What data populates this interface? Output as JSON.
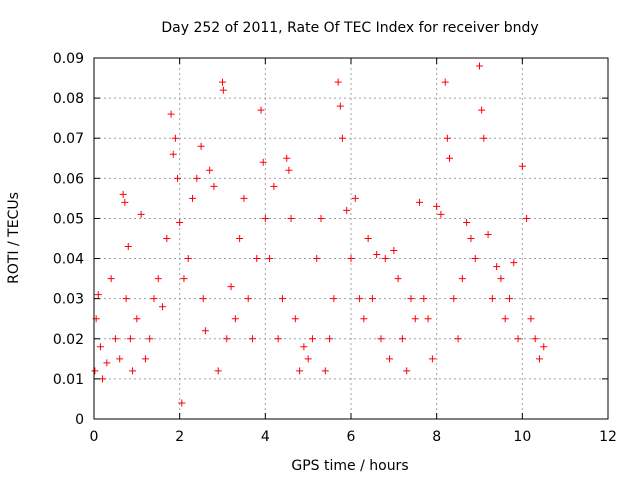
{
  "chart_data": {
    "type": "scatter",
    "title": "Day 252 of 2011, Rate Of TEC Index for receiver bndy",
    "xlabel": "GPS time / hours",
    "ylabel": "ROTI / TECUs",
    "xlim": [
      0,
      12
    ],
    "ylim": [
      0,
      0.09
    ],
    "x_ticks": [
      0,
      2,
      4,
      6,
      8,
      10,
      12
    ],
    "y_ticks": [
      0,
      0.01,
      0.02,
      0.03,
      0.04,
      0.05,
      0.06,
      0.07,
      0.08,
      0.09
    ],
    "grid": true,
    "marker": "+",
    "colors": {
      "series": "#ff0000",
      "grid": "#a0a0a0",
      "axis": "#000000"
    },
    "series": [
      {
        "x": [
          0.02,
          0.05,
          0.1,
          0.15,
          0.2,
          0.3,
          0.4,
          0.5,
          0.6,
          0.68,
          0.72,
          0.75,
          0.8,
          0.85,
          0.9,
          1.0,
          1.1,
          1.2,
          1.3,
          1.4,
          1.5,
          1.6,
          1.7,
          1.8,
          1.85,
          1.9,
          1.95,
          2.0,
          2.05,
          2.1,
          2.2,
          2.3,
          2.4,
          2.5,
          2.55,
          2.6,
          2.7,
          2.8,
          2.9,
          3.0,
          3.02,
          3.1,
          3.2,
          3.3,
          3.4,
          3.5,
          3.6,
          3.7,
          3.8,
          3.9,
          3.95,
          4.0,
          4.1,
          4.2,
          4.3,
          4.4,
          4.5,
          4.55,
          4.6,
          4.7,
          4.8,
          4.9,
          5.0,
          5.1,
          5.2,
          5.3,
          5.4,
          5.5,
          5.6,
          5.7,
          5.75,
          5.8,
          5.9,
          6.0,
          6.1,
          6.2,
          6.3,
          6.4,
          6.5,
          6.6,
          6.7,
          6.8,
          6.9,
          7.0,
          7.1,
          7.2,
          7.3,
          7.4,
          7.5,
          7.6,
          7.7,
          7.8,
          7.9,
          8.0,
          8.1,
          8.2,
          8.25,
          8.3,
          8.4,
          8.5,
          8.6,
          8.7,
          8.8,
          8.9,
          9.0,
          9.05,
          9.1,
          9.2,
          9.3,
          9.4,
          9.5,
          9.6,
          9.7,
          9.8,
          9.9,
          10.0,
          10.1,
          10.2,
          10.3,
          10.4,
          10.5
        ],
        "y": [
          0.012,
          0.025,
          0.031,
          0.018,
          0.01,
          0.014,
          0.035,
          0.02,
          0.015,
          0.056,
          0.054,
          0.03,
          0.043,
          0.02,
          0.012,
          0.025,
          0.051,
          0.015,
          0.02,
          0.03,
          0.035,
          0.028,
          0.045,
          0.076,
          0.066,
          0.07,
          0.06,
          0.049,
          0.004,
          0.035,
          0.04,
          0.055,
          0.06,
          0.068,
          0.03,
          0.022,
          0.062,
          0.058,
          0.012,
          0.084,
          0.082,
          0.02,
          0.033,
          0.025,
          0.045,
          0.055,
          0.03,
          0.02,
          0.04,
          0.077,
          0.064,
          0.05,
          0.04,
          0.058,
          0.02,
          0.03,
          0.065,
          0.062,
          0.05,
          0.025,
          0.012,
          0.018,
          0.015,
          0.02,
          0.04,
          0.05,
          0.012,
          0.02,
          0.03,
          0.084,
          0.078,
          0.07,
          0.052,
          0.04,
          0.055,
          0.03,
          0.025,
          0.045,
          0.03,
          0.041,
          0.02,
          0.04,
          0.015,
          0.042,
          0.035,
          0.02,
          0.012,
          0.03,
          0.025,
          0.054,
          0.03,
          0.025,
          0.015,
          0.053,
          0.051,
          0.084,
          0.07,
          0.065,
          0.03,
          0.02,
          0.035,
          0.049,
          0.045,
          0.04,
          0.088,
          0.077,
          0.07,
          0.046,
          0.03,
          0.038,
          0.035,
          0.025,
          0.03,
          0.039,
          0.02,
          0.063,
          0.05,
          0.025,
          0.02,
          0.015,
          0.018
        ]
      }
    ]
  }
}
